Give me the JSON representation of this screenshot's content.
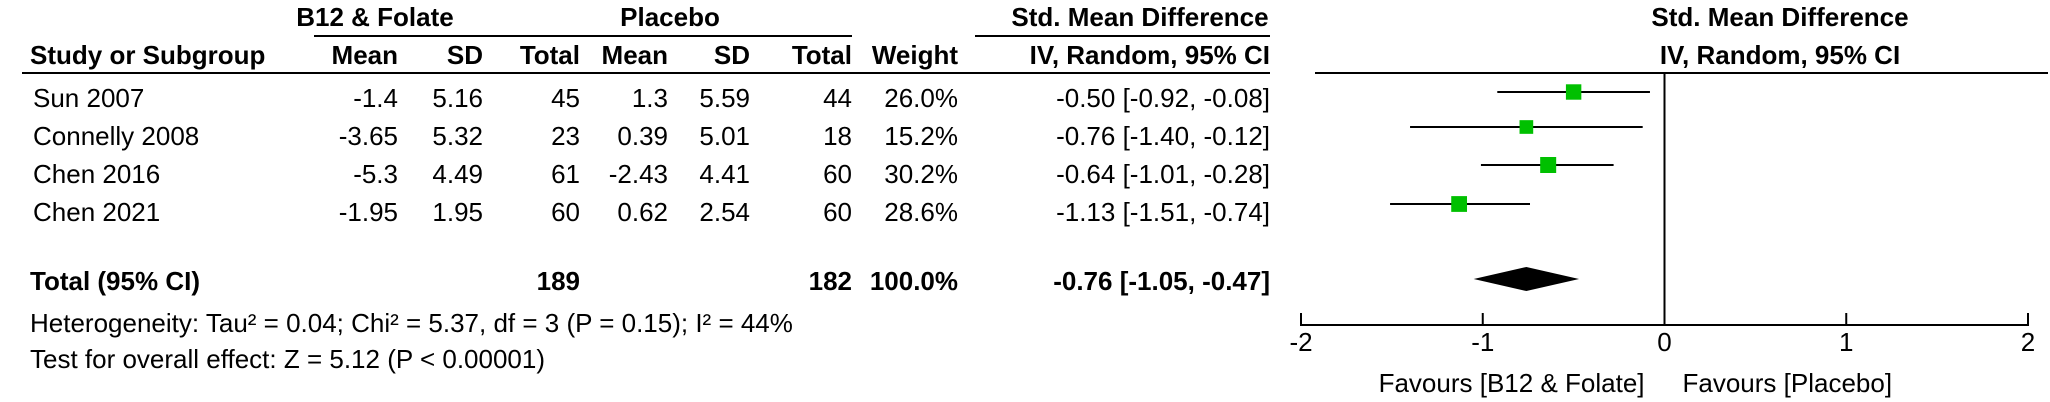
{
  "header": {
    "group1_label": "B12 & Folate",
    "group2_label": "Placebo",
    "effect_label": "Std. Mean Difference",
    "plot_label": "Std. Mean Difference",
    "study_col": "Study or Subgroup",
    "mean1": "Mean",
    "sd1": "SD",
    "total1": "Total",
    "mean2": "Mean",
    "sd2": "SD",
    "total2": "Total",
    "weight": "Weight",
    "method": "IV, Random, 95% CI",
    "plot_method": "IV, Random, 95% CI"
  },
  "studies": [
    {
      "name": "Sun 2007",
      "mean1": "-1.4",
      "sd1": "5.16",
      "total1": "45",
      "mean2": "1.3",
      "sd2": "5.59",
      "total2": "44",
      "weight": "26.0%",
      "ci": "-0.50 [-0.92, -0.08]"
    },
    {
      "name": "Connelly 2008",
      "mean1": "-3.65",
      "sd1": "5.32",
      "total1": "23",
      "mean2": "0.39",
      "sd2": "5.01",
      "total2": "18",
      "weight": "15.2%",
      "ci": "-0.76 [-1.40, -0.12]"
    },
    {
      "name": "Chen 2016",
      "mean1": "-5.3",
      "sd1": "4.49",
      "total1": "61",
      "mean2": "-2.43",
      "sd2": "4.41",
      "total2": "60",
      "weight": "30.2%",
      "ci": "-0.64 [-1.01, -0.28]"
    },
    {
      "name": "Chen 2021",
      "mean1": "-1.95",
      "sd1": "1.95",
      "total1": "60",
      "mean2": "0.62",
      "sd2": "2.54",
      "total2": "60",
      "weight": "28.6%",
      "ci": "-1.13 [-1.51, -0.74]"
    }
  ],
  "total": {
    "label": "Total (95% CI)",
    "total1": "189",
    "total2": "182",
    "weight": "100.0%",
    "ci": "-0.76 [-1.05, -0.47]"
  },
  "footer": {
    "heterogeneity": "Heterogeneity: Tau² = 0.04; Chi² = 5.37, df = 3 (P = 0.15); I² = 44%",
    "overall": "Test for overall effect: Z = 5.12 (P < 0.00001)"
  },
  "chart_data": {
    "type": "forest",
    "title": "Std. Mean Difference",
    "subtitle": "IV, Random, 95% CI",
    "xlim": [
      -2,
      2
    ],
    "xticks": [
      -2,
      -1,
      0,
      1,
      2
    ],
    "tick_labels": [
      "-2",
      "-1",
      "0",
      "1",
      "2"
    ],
    "favours_left": "Favours [B12 & Folate]",
    "favours_right": "Favours [Placebo]",
    "studies": [
      {
        "name": "Sun 2007",
        "estimate": -0.5,
        "lower": -0.92,
        "upper": -0.08,
        "weight": 26.0
      },
      {
        "name": "Connelly 2008",
        "estimate": -0.76,
        "lower": -1.4,
        "upper": -0.12,
        "weight": 15.2
      },
      {
        "name": "Chen 2016",
        "estimate": -0.64,
        "lower": -1.01,
        "upper": -0.28,
        "weight": 30.2
      },
      {
        "name": "Chen 2021",
        "estimate": -1.13,
        "lower": -1.51,
        "upper": -0.74,
        "weight": 28.6
      }
    ],
    "pooled": {
      "estimate": -0.76,
      "lower": -1.05,
      "upper": -0.47
    },
    "colors": {
      "marker": "#00c000",
      "pooled": "#000000",
      "line": "#000000"
    }
  }
}
